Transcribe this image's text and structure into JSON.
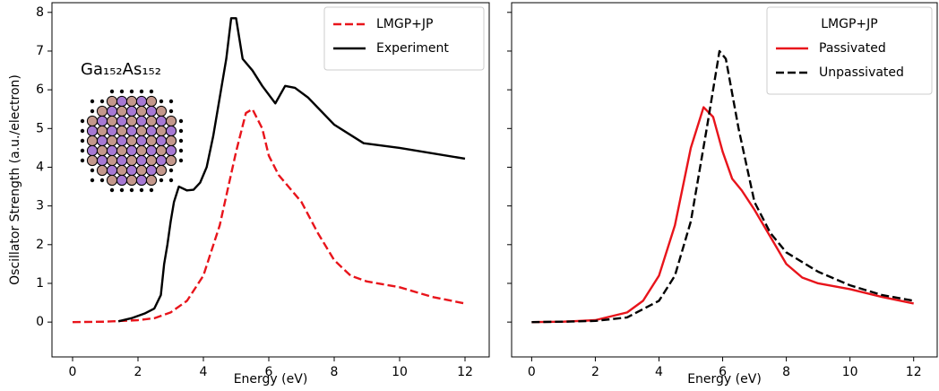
{
  "chart_data": [
    {
      "type": "line",
      "xlabel": "Energy (eV)",
      "ylabel": "Oscillator Strength (a.u./electron)",
      "annotation": "Ga₁₅₂As₁₅₂",
      "xlim": [
        -0.63,
        12.74
      ],
      "ylim": [
        -0.9,
        8.25
      ],
      "xticks": [
        0,
        2,
        4,
        6,
        8,
        10,
        12
      ],
      "yticks": [
        0,
        1,
        2,
        3,
        4,
        5,
        6,
        7,
        8
      ],
      "legend": "upper right",
      "series": [
        {
          "name": "LMGP+JP",
          "color": "#e8141b",
          "linestyle": "dashed",
          "x": [
            0,
            1,
            2,
            2.5,
            3,
            3.5,
            4,
            4.5,
            5,
            5.3,
            5.5,
            5.8,
            6,
            6.3,
            7,
            7.5,
            8,
            8.5,
            9,
            10,
            11,
            12
          ],
          "values": [
            0,
            0.01,
            0.05,
            0.1,
            0.25,
            0.55,
            1.2,
            2.5,
            4.4,
            5.4,
            5.5,
            5.0,
            4.3,
            3.8,
            3.1,
            2.3,
            1.6,
            1.2,
            1.05,
            0.9,
            0.65,
            0.48
          ]
        },
        {
          "name": "Experiment",
          "color": "#000000",
          "linestyle": "solid",
          "x": [
            1.4,
            1.8,
            2.2,
            2.5,
            2.7,
            2.8,
            2.9,
            3.0,
            3.1,
            3.25,
            3.5,
            3.7,
            3.9,
            4.1,
            4.3,
            4.5,
            4.7,
            4.85,
            5.0,
            5.2,
            5.5,
            5.8,
            6.2,
            6.5,
            6.8,
            7.2,
            8,
            8.9,
            10,
            12
          ],
          "values": [
            0.02,
            0.1,
            0.22,
            0.35,
            0.7,
            1.5,
            2.0,
            2.6,
            3.1,
            3.5,
            3.4,
            3.42,
            3.6,
            4.0,
            4.8,
            5.8,
            6.8,
            7.85,
            7.85,
            6.8,
            6.5,
            6.1,
            5.65,
            6.1,
            6.05,
            5.8,
            5.1,
            4.62,
            4.5,
            4.22
          ]
        }
      ]
    },
    {
      "type": "line",
      "xlabel": "Energy (eV)",
      "xlim": [
        -0.63,
        12.74
      ],
      "ylim": [
        -0.9,
        8.25
      ],
      "xticks": [
        0,
        2,
        4,
        6,
        8,
        10,
        12
      ],
      "yticks": [
        0,
        1,
        2,
        3,
        4,
        5,
        6,
        7,
        8
      ],
      "legend": "upper right",
      "legend_title": "LMGP+JP",
      "series": [
        {
          "name": "Passivated",
          "color": "#e8141b",
          "linestyle": "solid",
          "x": [
            0,
            1,
            2,
            3,
            3.5,
            4,
            4.5,
            5,
            5.4,
            5.7,
            6,
            6.3,
            6.6,
            7,
            7.5,
            8,
            8.5,
            9,
            10,
            11,
            12
          ],
          "values": [
            0,
            0.01,
            0.05,
            0.25,
            0.55,
            1.2,
            2.5,
            4.5,
            5.55,
            5.3,
            4.4,
            3.7,
            3.4,
            2.9,
            2.2,
            1.5,
            1.15,
            1.0,
            0.85,
            0.65,
            0.48
          ]
        },
        {
          "name": "Unpassivated",
          "color": "#000000",
          "linestyle": "dashed",
          "x": [
            0,
            1,
            2,
            3,
            4,
            4.5,
            5,
            5.5,
            5.9,
            6.1,
            6.5,
            7,
            7.5,
            8,
            9,
            10,
            11,
            12
          ],
          "values": [
            0,
            0.01,
            0.03,
            0.12,
            0.55,
            1.2,
            2.6,
            5.0,
            7.0,
            6.8,
            5.0,
            3.1,
            2.3,
            1.8,
            1.3,
            0.95,
            0.7,
            0.55
          ]
        }
      ]
    }
  ]
}
